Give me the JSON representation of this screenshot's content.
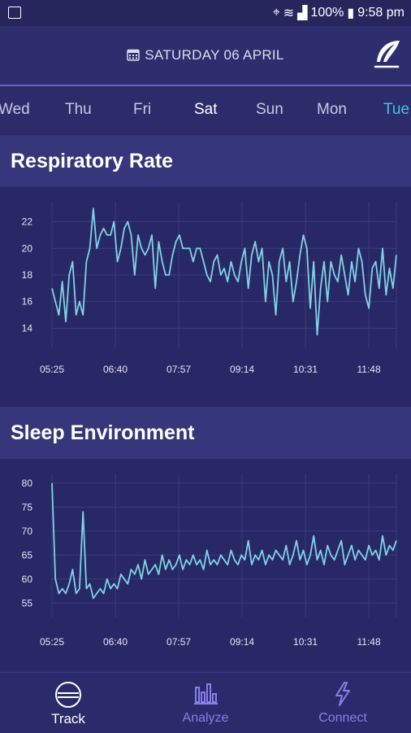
{
  "status_bar": {
    "battery": "100%",
    "time": "9:58 pm"
  },
  "header": {
    "date": "SATURDAY 06 APRIL"
  },
  "days": [
    "Wed",
    "Thu",
    "Fri",
    "Sat",
    "Sun",
    "Mon",
    "Tue"
  ],
  "sections": {
    "respiratory": {
      "title": "Respiratory Rate"
    },
    "environment": {
      "title": "Sleep Environment"
    }
  },
  "nav": {
    "track": "Track",
    "analyze": "Analyze",
    "connect": "Connect"
  },
  "colors": {
    "line": "#7fd4e3",
    "accent": "#3bc6e8",
    "nav_inactive": "#8a7ee8"
  },
  "chart_data": [
    {
      "type": "line",
      "title": "Respiratory Rate",
      "x_ticks": [
        "05:25",
        "06:40",
        "07:57",
        "09:14",
        "10:31",
        "11:48"
      ],
      "y_ticks": [
        14,
        16,
        18,
        20,
        22
      ],
      "ylim": [
        12.5,
        23.5
      ],
      "x": [
        0,
        1,
        2,
        3,
        4,
        5,
        6,
        7,
        8,
        9,
        10,
        11,
        12,
        13,
        14,
        15,
        16,
        17,
        18,
        19,
        20,
        21,
        22,
        23,
        24,
        25,
        26,
        27,
        28,
        29,
        30,
        31,
        32,
        33,
        34,
        35,
        36,
        37,
        38,
        39,
        40,
        41,
        42,
        43,
        44,
        45,
        46,
        47,
        48,
        49,
        50,
        51,
        52,
        53,
        54,
        55,
        56,
        57,
        58,
        59,
        60,
        61,
        62,
        63,
        64,
        65,
        66,
        67,
        68,
        69,
        70,
        71,
        72,
        73,
        74,
        75,
        76,
        77,
        78,
        79,
        80,
        81,
        82,
        83,
        84,
        85,
        86,
        87,
        88,
        89,
        90,
        91,
        92,
        93,
        94,
        95,
        96,
        97,
        98,
        99,
        100
      ],
      "series": [
        {
          "values": [
            17,
            16,
            15,
            17.5,
            14.5,
            18,
            19,
            15,
            16,
            15,
            19,
            20,
            23,
            20,
            21,
            21.5,
            21,
            21,
            22,
            19,
            20,
            21.5,
            22,
            21,
            18,
            21,
            20,
            19.5,
            20,
            21,
            17,
            20.5,
            19,
            18,
            18,
            19.5,
            20.5,
            21,
            20,
            20,
            20,
            19,
            20,
            20,
            19,
            18,
            17.5,
            19,
            19.5,
            18,
            18.5,
            17.5,
            19,
            18,
            17.5,
            19,
            20,
            17,
            19.5,
            20.5,
            19,
            20,
            16,
            19,
            18,
            15,
            19,
            20,
            17.5,
            19,
            16,
            17.5,
            19.5,
            21,
            20,
            15.5,
            19,
            13.5,
            17,
            19,
            16,
            19,
            18,
            17.5,
            19.5,
            18,
            16.5,
            19,
            17.5,
            20,
            19,
            16.5,
            15.5,
            18.5,
            19,
            17,
            20,
            16.5,
            18.5,
            17,
            19.5
          ]
        }
      ]
    },
    {
      "type": "line",
      "title": "Sleep Environment",
      "x_ticks": [
        "05:25",
        "06:40",
        "07:57",
        "09:14",
        "10:31",
        "11:48"
      ],
      "y_ticks": [
        55,
        60,
        65,
        70,
        75,
        80
      ],
      "ylim": [
        52,
        82
      ],
      "x": [
        0,
        1,
        2,
        3,
        4,
        5,
        6,
        7,
        8,
        9,
        10,
        11,
        12,
        13,
        14,
        15,
        16,
        17,
        18,
        19,
        20,
        21,
        22,
        23,
        24,
        25,
        26,
        27,
        28,
        29,
        30,
        31,
        32,
        33,
        34,
        35,
        36,
        37,
        38,
        39,
        40,
        41,
        42,
        43,
        44,
        45,
        46,
        47,
        48,
        49,
        50,
        51,
        52,
        53,
        54,
        55,
        56,
        57,
        58,
        59,
        60,
        61,
        62,
        63,
        64,
        65,
        66,
        67,
        68,
        69,
        70,
        71,
        72,
        73,
        74,
        75,
        76,
        77,
        78,
        79,
        80,
        81,
        82,
        83,
        84,
        85,
        86,
        87,
        88,
        89,
        90,
        91,
        92,
        93,
        94,
        95,
        96,
        97,
        98,
        99,
        100
      ],
      "series": [
        {
          "values": [
            80,
            60,
            57,
            58,
            57,
            59,
            62,
            57,
            58,
            74,
            58,
            59,
            56,
            57,
            58,
            57,
            60,
            58,
            59,
            58,
            61,
            60,
            59,
            62,
            61,
            63,
            60,
            64,
            61,
            62,
            63,
            61,
            65,
            62,
            64,
            62,
            63,
            65,
            62,
            64,
            63,
            65,
            63,
            64,
            62,
            66,
            63,
            64,
            63,
            65,
            64,
            63,
            66,
            64,
            63,
            65,
            64,
            68,
            63,
            65,
            64,
            66,
            63,
            65,
            64,
            66,
            65,
            64,
            67,
            63,
            65,
            68,
            64,
            66,
            63,
            65,
            69,
            64,
            66,
            63,
            67,
            65,
            64,
            66,
            68,
            63,
            65,
            67,
            64,
            66,
            65,
            64,
            67,
            65,
            66,
            64,
            69,
            65,
            67,
            66,
            68
          ]
        }
      ]
    }
  ]
}
